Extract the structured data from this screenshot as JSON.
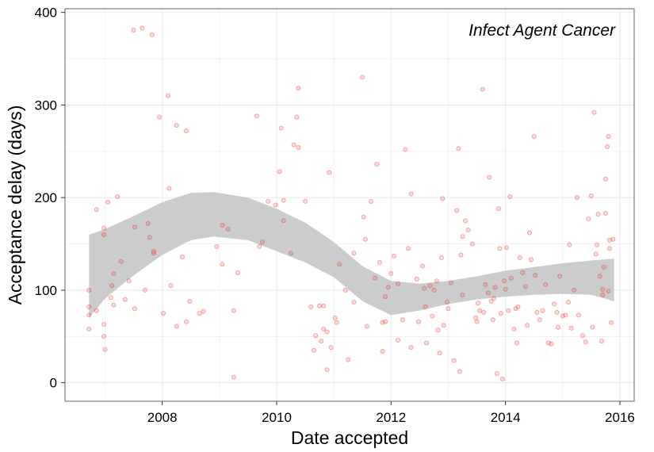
{
  "chart_data": {
    "type": "scatter",
    "annotation": "Infect Agent Cancer",
    "xlabel": "Date accepted",
    "ylabel": "Acceptance delay (days)",
    "xlim": [
      2006.3,
      2016.25
    ],
    "ylim": [
      -20,
      404
    ],
    "x_ticks": [
      2008,
      2010,
      2012,
      2014,
      2016
    ],
    "y_ticks": [
      0,
      100,
      200,
      300,
      400
    ],
    "grid": true,
    "point_color": "#e8332a",
    "band_color": "#cccccc",
    "series": [
      {
        "type": "points",
        "points": [
          [
            2006.72,
            100
          ],
          [
            2006.72,
            82
          ],
          [
            2006.72,
            73
          ],
          [
            2006.72,
            58
          ],
          [
            2006.85,
            187
          ],
          [
            2006.85,
            78
          ],
          [
            2006.98,
            160
          ],
          [
            2006.98,
            167
          ],
          [
            2006.98,
            63
          ],
          [
            2006.98,
            50
          ],
          [
            2007.0,
            36
          ],
          [
            2007.05,
            195
          ],
          [
            2007.1,
            92
          ],
          [
            2007.12,
            105
          ],
          [
            2007.15,
            118
          ],
          [
            2007.15,
            84
          ],
          [
            2007.22,
            201
          ],
          [
            2007.28,
            131
          ],
          [
            2007.35,
            90
          ],
          [
            2007.42,
            110
          ],
          [
            2007.5,
            381
          ],
          [
            2007.52,
            168
          ],
          [
            2007.52,
            80
          ],
          [
            2007.65,
            383
          ],
          [
            2007.7,
            100
          ],
          [
            2007.75,
            172
          ],
          [
            2007.78,
            157
          ],
          [
            2007.82,
            376
          ],
          [
            2007.85,
            140
          ],
          [
            2007.85,
            142
          ],
          [
            2007.95,
            287
          ],
          [
            2008.02,
            75
          ],
          [
            2008.1,
            310
          ],
          [
            2008.12,
            210
          ],
          [
            2008.15,
            105
          ],
          [
            2008.25,
            278
          ],
          [
            2008.25,
            61
          ],
          [
            2008.35,
            136
          ],
          [
            2008.42,
            272
          ],
          [
            2008.42,
            66
          ],
          [
            2008.48,
            88
          ],
          [
            2008.65,
            75
          ],
          [
            2008.72,
            77
          ],
          [
            2008.95,
            147
          ],
          [
            2009.05,
            170
          ],
          [
            2009.05,
            128
          ],
          [
            2009.15,
            166
          ],
          [
            2009.25,
            78
          ],
          [
            2009.25,
            6
          ],
          [
            2009.32,
            119
          ],
          [
            2009.65,
            288
          ],
          [
            2009.7,
            147
          ],
          [
            2009.75,
            152
          ],
          [
            2009.85,
            196
          ],
          [
            2009.98,
            192
          ],
          [
            2010.05,
            228
          ],
          [
            2010.08,
            275
          ],
          [
            2010.12,
            175
          ],
          [
            2010.12,
            197
          ],
          [
            2010.25,
            140
          ],
          [
            2010.3,
            257
          ],
          [
            2010.35,
            287
          ],
          [
            2010.38,
            318
          ],
          [
            2010.38,
            254
          ],
          [
            2010.5,
            196
          ],
          [
            2010.6,
            82
          ],
          [
            2010.65,
            35
          ],
          [
            2010.68,
            51
          ],
          [
            2010.75,
            83
          ],
          [
            2010.78,
            45
          ],
          [
            2010.82,
            58
          ],
          [
            2010.82,
            83
          ],
          [
            2010.88,
            14
          ],
          [
            2010.88,
            55
          ],
          [
            2010.92,
            227
          ],
          [
            2010.95,
            38
          ],
          [
            2011.02,
            70
          ],
          [
            2011.05,
            65
          ],
          [
            2011.1,
            128
          ],
          [
            2011.2,
            100
          ],
          [
            2011.25,
            25
          ],
          [
            2011.35,
            140
          ],
          [
            2011.35,
            87
          ],
          [
            2011.5,
            330
          ],
          [
            2011.52,
            179
          ],
          [
            2011.55,
            155
          ],
          [
            2011.58,
            61
          ],
          [
            2011.65,
            196
          ],
          [
            2011.72,
            113
          ],
          [
            2011.75,
            236
          ],
          [
            2011.8,
            130
          ],
          [
            2011.85,
            34
          ],
          [
            2011.85,
            65
          ],
          [
            2011.9,
            66
          ],
          [
            2011.9,
            93
          ],
          [
            2011.95,
            103
          ],
          [
            2012.0,
            118
          ],
          [
            2012.05,
            137
          ],
          [
            2012.12,
            46
          ],
          [
            2012.12,
            107
          ],
          [
            2012.2,
            68
          ],
          [
            2012.25,
            252
          ],
          [
            2012.3,
            145
          ],
          [
            2012.35,
            204
          ],
          [
            2012.35,
            38
          ],
          [
            2012.45,
            112
          ],
          [
            2012.48,
            66
          ],
          [
            2012.55,
            126
          ],
          [
            2012.58,
            102
          ],
          [
            2012.6,
            82
          ],
          [
            2012.62,
            43
          ],
          [
            2012.68,
            105
          ],
          [
            2012.72,
            72
          ],
          [
            2012.75,
            100
          ],
          [
            2012.8,
            110
          ],
          [
            2012.82,
            57
          ],
          [
            2012.85,
            32
          ],
          [
            2012.88,
            135
          ],
          [
            2012.9,
            199
          ],
          [
            2012.92,
            62
          ],
          [
            2012.98,
            87
          ],
          [
            2013.0,
            80
          ],
          [
            2013.05,
            108
          ],
          [
            2013.1,
            24
          ],
          [
            2013.15,
            186
          ],
          [
            2013.18,
            253
          ],
          [
            2013.2,
            12
          ],
          [
            2013.22,
            138
          ],
          [
            2013.25,
            158
          ],
          [
            2013.25,
            95
          ],
          [
            2013.3,
            175
          ],
          [
            2013.35,
            165
          ],
          [
            2013.42,
            150
          ],
          [
            2013.48,
            70
          ],
          [
            2013.5,
            66
          ],
          [
            2013.52,
            86
          ],
          [
            2013.55,
            78
          ],
          [
            2013.6,
            317
          ],
          [
            2013.62,
            76
          ],
          [
            2013.65,
            106
          ],
          [
            2013.7,
            97
          ],
          [
            2013.72,
            222
          ],
          [
            2013.75,
            88
          ],
          [
            2013.78,
            68
          ],
          [
            2013.8,
            91
          ],
          [
            2013.82,
            103
          ],
          [
            2013.85,
            10
          ],
          [
            2013.88,
            188
          ],
          [
            2013.9,
            145
          ],
          [
            2013.92,
            75
          ],
          [
            2013.95,
            4
          ],
          [
            2013.98,
            110
          ],
          [
            2014.0,
            101
          ],
          [
            2014.02,
            146
          ],
          [
            2014.05,
            78
          ],
          [
            2014.08,
            201
          ],
          [
            2014.1,
            113
          ],
          [
            2014.15,
            58
          ],
          [
            2014.18,
            80
          ],
          [
            2014.2,
            43
          ],
          [
            2014.22,
            82
          ],
          [
            2014.25,
            135
          ],
          [
            2014.3,
            119
          ],
          [
            2014.35,
            104
          ],
          [
            2014.38,
            62
          ],
          [
            2014.42,
            162
          ],
          [
            2014.45,
            133
          ],
          [
            2014.5,
            266
          ],
          [
            2014.52,
            116
          ],
          [
            2014.55,
            76
          ],
          [
            2014.6,
            68
          ],
          [
            2014.65,
            78
          ],
          [
            2014.7,
            106
          ],
          [
            2014.75,
            43
          ],
          [
            2014.8,
            42
          ],
          [
            2014.85,
            85
          ],
          [
            2014.9,
            76
          ],
          [
            2014.92,
            60
          ],
          [
            2014.95,
            115
          ],
          [
            2015.0,
            72
          ],
          [
            2015.05,
            73
          ],
          [
            2015.1,
            87
          ],
          [
            2015.12,
            149
          ],
          [
            2015.15,
            59
          ],
          [
            2015.2,
            100
          ],
          [
            2015.25,
            200
          ],
          [
            2015.28,
            73
          ],
          [
            2015.35,
            51
          ],
          [
            2015.4,
            44
          ],
          [
            2015.45,
            177
          ],
          [
            2015.5,
            202
          ],
          [
            2015.52,
            60
          ],
          [
            2015.55,
            292
          ],
          [
            2015.58,
            139
          ],
          [
            2015.62,
            182
          ],
          [
            2015.65,
            115
          ],
          [
            2015.68,
            45
          ],
          [
            2015.7,
            95
          ],
          [
            2015.72,
            125
          ],
          [
            2015.75,
            220
          ],
          [
            2015.78,
            255
          ],
          [
            2015.8,
            266
          ],
          [
            2015.82,
            145
          ],
          [
            2015.85,
            65
          ],
          [
            2015.88,
            155
          ],
          [
            2015.6,
            149
          ],
          [
            2015.7,
            101
          ],
          [
            2015.75,
            183
          ],
          [
            2015.8,
            99
          ],
          [
            2015.82,
            154
          ]
        ]
      },
      {
        "type": "smooth_band",
        "x": [
          2006.72,
          2007.0,
          2007.5,
          2008.0,
          2008.5,
          2008.9,
          2009.5,
          2010.0,
          2010.5,
          2011.0,
          2011.5,
          2012.0,
          2012.5,
          2013.0,
          2013.5,
          2014.0,
          2014.5,
          2015.0,
          2015.5,
          2015.9
        ],
        "upper": [
          160,
          166,
          180,
          195,
          205,
          206,
          200,
          188,
          173,
          152,
          126,
          110,
          107,
          110,
          115,
          121,
          125,
          129,
          132,
          134
        ],
        "lower": [
          70,
          91,
          116,
          138,
          154,
          158,
          154,
          142,
          130,
          114,
          88,
          73,
          78,
          85,
          90,
          93,
          95,
          96,
          95,
          88
        ]
      }
    ]
  }
}
